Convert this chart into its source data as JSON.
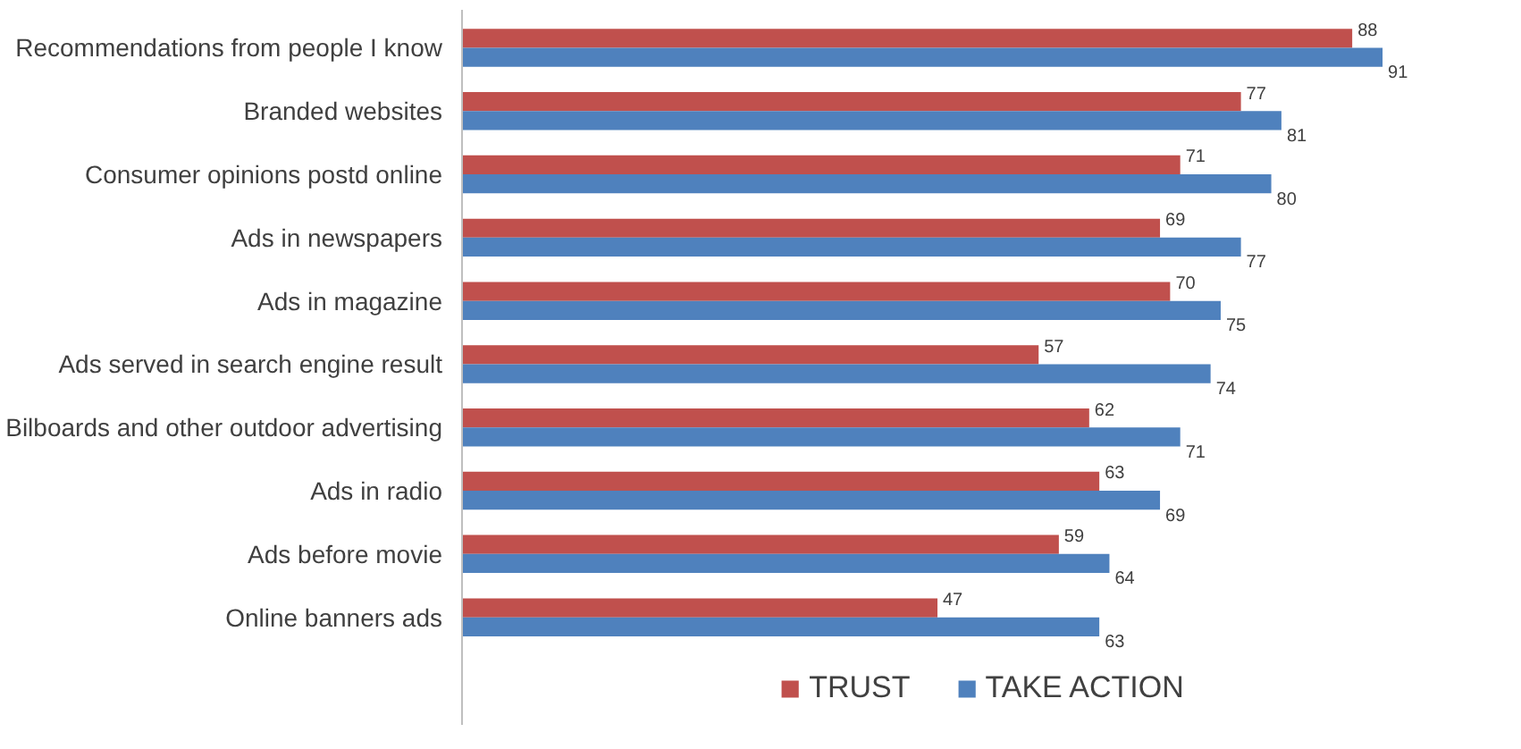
{
  "chart_data": {
    "type": "bar",
    "orientation": "horizontal",
    "categories": [
      "Recommendations from people I know",
      "Branded websites",
      "Consumer opinions postd online",
      "Ads in newspapers",
      "Ads in magazine",
      "Ads served in search engine result",
      "Bilboards and other outdoor advertising",
      "Ads in radio",
      "Ads before movie",
      "Online banners ads"
    ],
    "series": [
      {
        "name": "TRUST",
        "color": "#c0504d",
        "values": [
          88,
          77,
          71,
          69,
          70,
          57,
          62,
          63,
          59,
          47
        ]
      },
      {
        "name": "TAKE ACTION",
        "color": "#4f81bd",
        "values": [
          91,
          81,
          80,
          77,
          75,
          74,
          71,
          69,
          64,
          63
        ]
      }
    ],
    "data_labels": true,
    "grid": false,
    "legend": "bottom",
    "tick_labels": "y"
  }
}
